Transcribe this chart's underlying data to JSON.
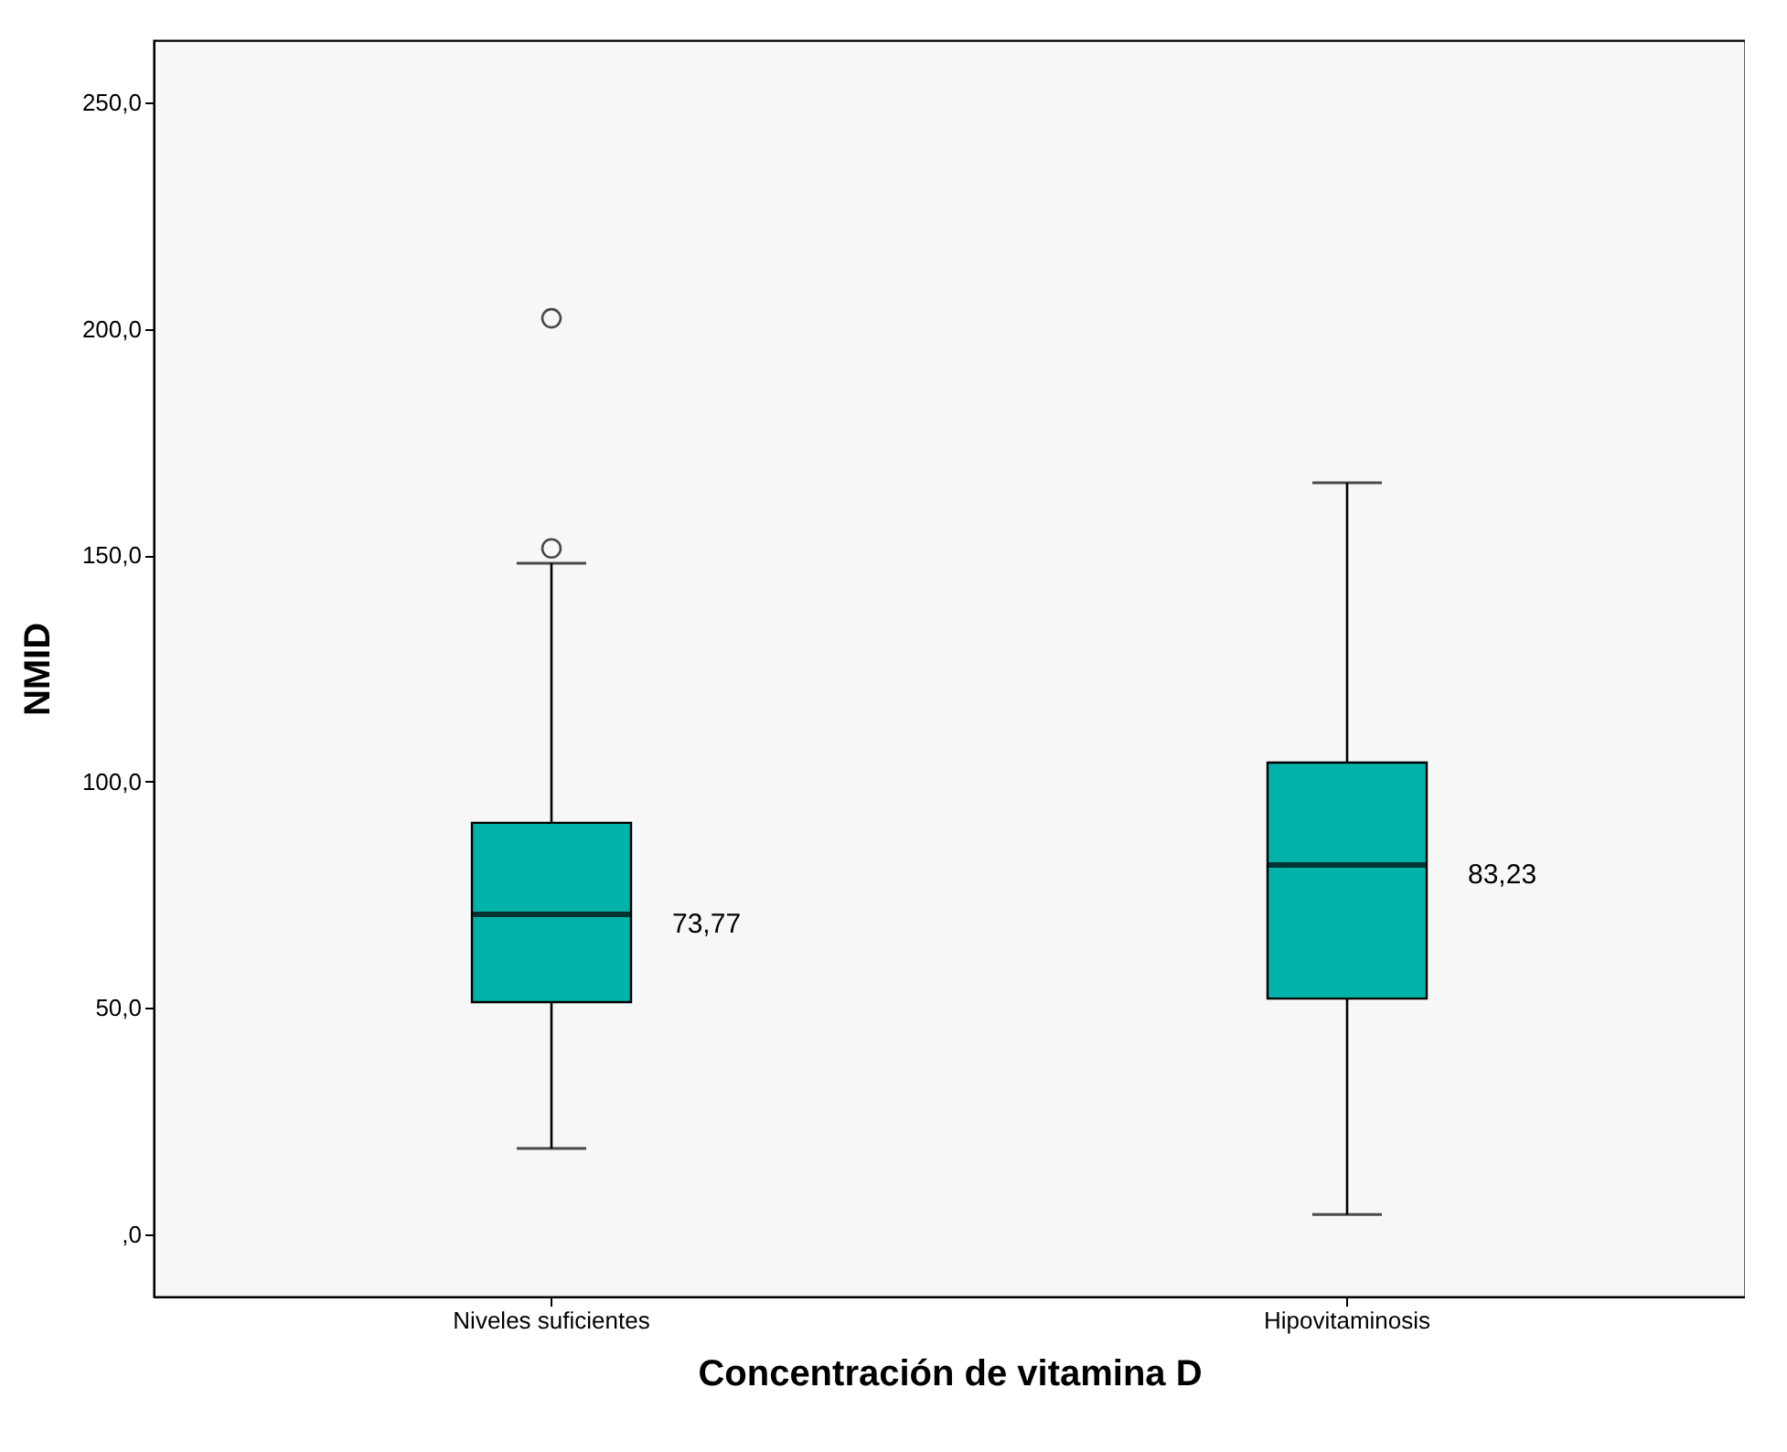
{
  "chart_data": {
    "type": "box",
    "xlabel": "Concentración de vitamina D",
    "ylabel": "NMID",
    "categories": [
      "Niveles suficientes",
      "Hipovitaminosis"
    ],
    "boxes": [
      {
        "low": 19.0,
        "q1": 51.3,
        "median": 70.7,
        "q3": 90.9,
        "high": 148.2,
        "outliers": [
          151.5,
          202.3
        ]
      },
      {
        "low": 4.4,
        "q1": 52.1,
        "median": 81.6,
        "q3": 104.2,
        "high": 166.0
      }
    ],
    "color": "#00b2a9",
    "ylim": [
      -13.7,
      263.7
    ],
    "yticks": [
      {
        "value": 0,
        "label": ",0"
      },
      {
        "value": 50,
        "label": "50,0"
      },
      {
        "value": 100,
        "label": "100,0"
      },
      {
        "value": 150,
        "label": "150,0"
      },
      {
        "value": 200,
        "label": "200,0"
      },
      {
        "value": 250,
        "label": "250,0"
      }
    ],
    "grid": false,
    "annotations": [
      "73,77",
      "83,23"
    ]
  }
}
